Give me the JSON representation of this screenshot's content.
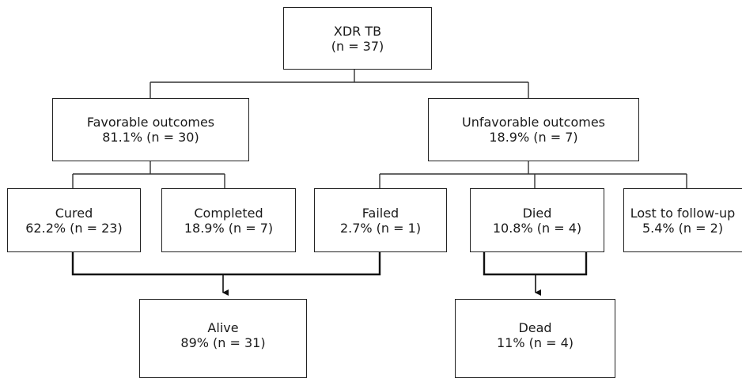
{
  "nodes": {
    "root": {
      "line1": "XDR TB",
      "line2": "(n = 37)"
    },
    "favorable": {
      "line1": "Favorable outcomes",
      "line2": "81.1% (n = 30)"
    },
    "unfavorable": {
      "line1": "Unfavorable outcomes",
      "line2": "18.9% (n = 7)"
    },
    "cured": {
      "line1": "Cured",
      "line2": "62.2% (n = 23)"
    },
    "completed": {
      "line1": "Completed",
      "line2": "18.9% (n = 7)"
    },
    "failed": {
      "line1": "Failed",
      "line2": "2.7% (n = 1)"
    },
    "died": {
      "line1": "Died",
      "line2": "10.8% (n = 4)"
    },
    "lost": {
      "line1": "Lost to follow-up",
      "line2": "5.4% (n = 2)"
    },
    "alive": {
      "line1": "Alive",
      "line2": "89% (n = 31)"
    },
    "dead": {
      "line1": "Dead",
      "line2": "11% (n = 4)"
    }
  },
  "colors": {
    "border": "#222222",
    "connector": "#333333",
    "merge_connector": "#111111",
    "text": "#1a1a1a"
  }
}
